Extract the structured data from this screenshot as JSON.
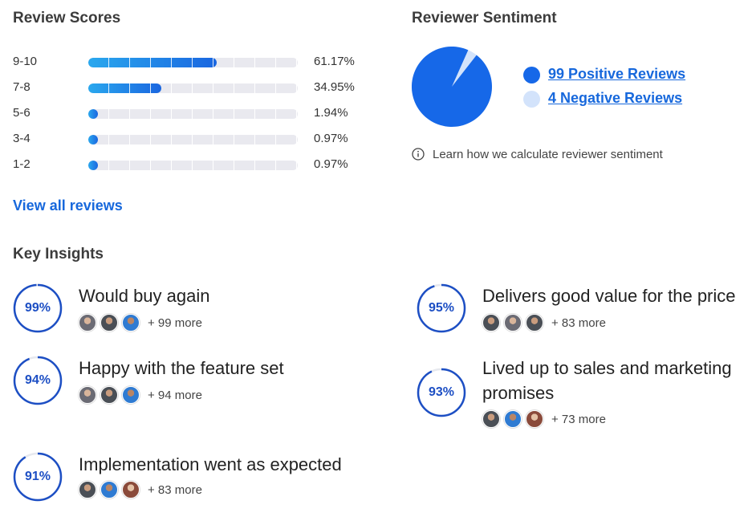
{
  "review_scores": {
    "title": "Review Scores",
    "rows": [
      {
        "label": "9-10",
        "percent_text": "61.17%",
        "value": 61.17
      },
      {
        "label": "7-8",
        "percent_text": "34.95%",
        "value": 34.95
      },
      {
        "label": "5-6",
        "percent_text": "1.94%",
        "value": 1.94
      },
      {
        "label": "3-4",
        "percent_text": "0.97%",
        "value": 0.97
      },
      {
        "label": "1-2",
        "percent_text": "0.97%",
        "value": 0.97
      }
    ],
    "view_all_label": "View all reviews",
    "colors": {
      "bar_start": "#2aa8ee",
      "bar_end": "#1a66e0",
      "track": "#e9e9ef"
    }
  },
  "sentiment": {
    "title": "Reviewer Sentiment",
    "positive_count": 99,
    "negative_count": 4,
    "positive_label": "99 Positive Reviews",
    "negative_label": "4 Negative Reviews",
    "learn_text": "Learn how we calculate reviewer sentiment",
    "info_icon": "info-icon",
    "colors": {
      "positive": "#1668e8",
      "negative": "#d3e3fb"
    }
  },
  "key_insights": {
    "title": "Key Insights",
    "items": [
      {
        "percent": 99,
        "percent_text": "99%",
        "title_line1": "Would buy again",
        "title_line2": "",
        "avatars": [
          "a",
          "b",
          "c"
        ],
        "more": "+ 99 more"
      },
      {
        "percent": 95,
        "percent_text": "95%",
        "title_line1": "Delivers good value for the price",
        "title_line2": "",
        "avatars": [
          "b",
          "a",
          "b"
        ],
        "more": "+ 83 more"
      },
      {
        "percent": 94,
        "percent_text": "94%",
        "title_line1": "Happy with the feature set",
        "title_line2": "",
        "avatars": [
          "a",
          "b",
          "c"
        ],
        "more": "+ 94 more"
      },
      {
        "percent": 93,
        "percent_text": "93%",
        "title_line1": "Lived up to sales and marketing",
        "title_line2": "promises",
        "avatars": [
          "b",
          "c",
          "d"
        ],
        "more": "+ 73 more"
      },
      {
        "percent": 91,
        "percent_text": "91%",
        "title_line1": "Implementation went as expected",
        "title_line2": "",
        "avatars": [
          "b",
          "c",
          "d"
        ],
        "more": "+ 83 more"
      }
    ],
    "colors": {
      "ring": "#1d4fc4",
      "ring_track": "#e6e8ee"
    }
  }
}
